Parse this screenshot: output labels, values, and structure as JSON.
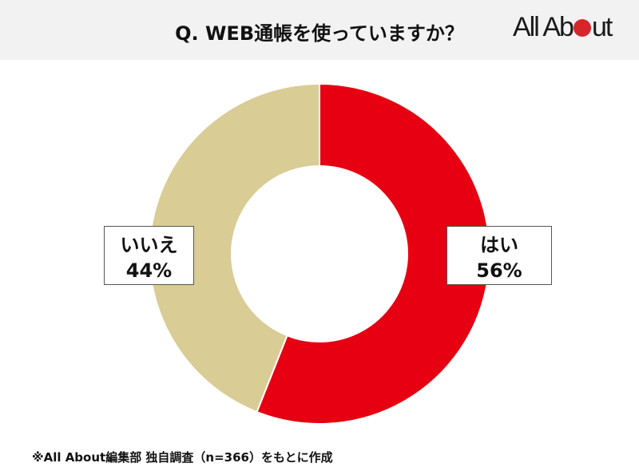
{
  "header": {
    "title": "Q. WEB通帳を使っていますか？",
    "logo": {
      "part1": "All Ab",
      "part2": "ut",
      "dot_color": "#d7262b"
    }
  },
  "chart_data": {
    "type": "pie",
    "subtype": "donut",
    "title": "Q. WEB通帳を使っていますか？",
    "categories": [
      "はい",
      "いいえ"
    ],
    "values": [
      56,
      44
    ],
    "unit": "%",
    "colors": [
      "#e60012",
      "#d9cc94"
    ],
    "start_angle_deg": 0,
    "direction": "clockwise",
    "labels": [
      {
        "category": "はい",
        "value_text": "56%"
      },
      {
        "category": "いいえ",
        "value_text": "44%"
      }
    ],
    "legend": "none",
    "note": "※All About編集部 独自調査（n=366）をもとに作成",
    "sample_size": 366
  },
  "labels": {
    "yes": {
      "name": "はい",
      "pct": "56%"
    },
    "no": {
      "name": "いいえ",
      "pct": "44%"
    }
  },
  "footnote": "※All About編集部 独自調査（n=366）をもとに作成"
}
